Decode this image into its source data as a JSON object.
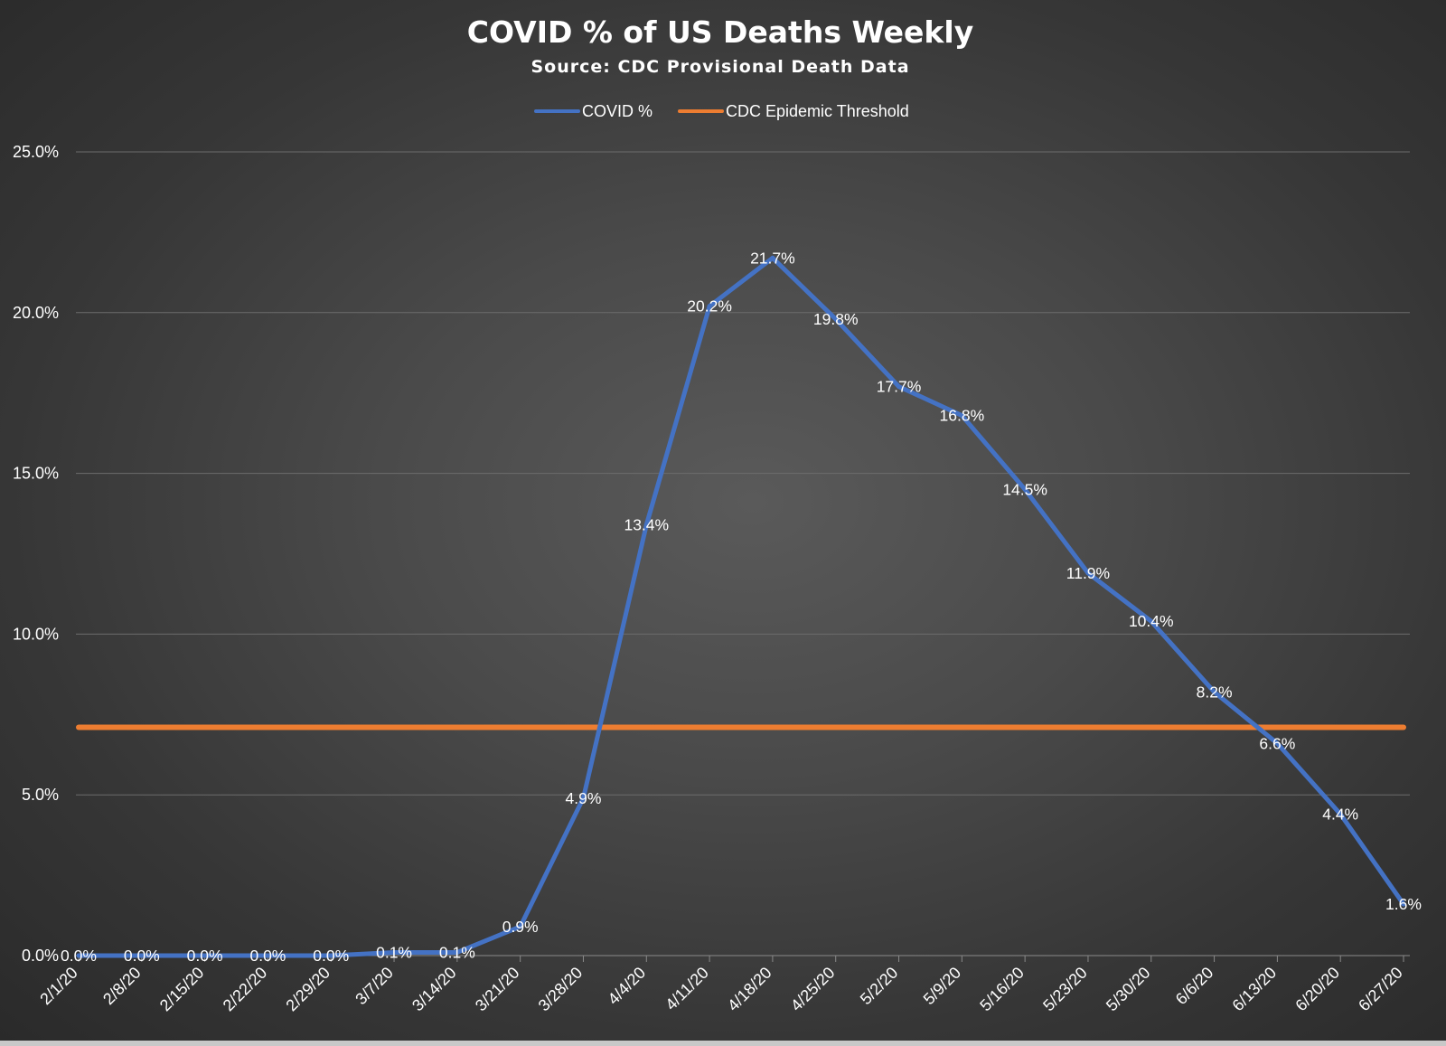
{
  "chart_data": {
    "type": "line",
    "title": "COVID % of US Deaths Weekly",
    "subtitle": "Source: CDC Provisional Death Data",
    "legend_position": "top-center",
    "grid": true,
    "ylim": [
      0,
      25
    ],
    "y_ticks": [
      "0.0%",
      "5.0%",
      "10.0%",
      "15.0%",
      "20.0%",
      "25.0%"
    ],
    "y_tick_values": [
      0,
      5,
      10,
      15,
      20,
      25
    ],
    "categories": [
      "2/1/20",
      "2/8/20",
      "2/15/20",
      "2/22/20",
      "2/29/20",
      "3/7/20",
      "3/14/20",
      "3/21/20",
      "3/28/20",
      "4/4/20",
      "4/11/20",
      "4/18/20",
      "4/25/20",
      "5/2/20",
      "5/9/20",
      "5/16/20",
      "5/23/20",
      "5/30/20",
      "6/6/20",
      "6/13/20",
      "6/20/20",
      "6/27/20"
    ],
    "series": [
      {
        "name": "COVID %",
        "color": "#4472c4",
        "values": [
          0.0,
          0.0,
          0.0,
          0.0,
          0.0,
          0.1,
          0.1,
          0.9,
          4.9,
          13.4,
          20.2,
          21.7,
          19.8,
          17.7,
          16.8,
          14.5,
          11.9,
          10.4,
          8.2,
          6.6,
          4.4,
          1.6
        ],
        "labels": [
          "0.0%",
          "0.0%",
          "0.0%",
          "0.0%",
          "0.0%",
          "0.1%",
          "0.1%",
          "0.9%",
          "4.9%",
          "13.4%",
          "20.2%",
          "21.7%",
          "19.8%",
          "17.7%",
          "16.8%",
          "14.5%",
          "11.9%",
          "10.4%",
          "8.2%",
          "6.6%",
          "4.4%",
          "1.6%"
        ]
      },
      {
        "name": "CDC Epidemic Threshold",
        "color": "#ed7d31",
        "values": [
          7.1,
          7.1,
          7.1,
          7.1,
          7.1,
          7.1,
          7.1,
          7.1,
          7.1,
          7.1,
          7.1,
          7.1,
          7.1,
          7.1,
          7.1,
          7.1,
          7.1,
          7.1,
          7.1,
          7.1,
          7.1,
          7.1
        ]
      }
    ]
  }
}
